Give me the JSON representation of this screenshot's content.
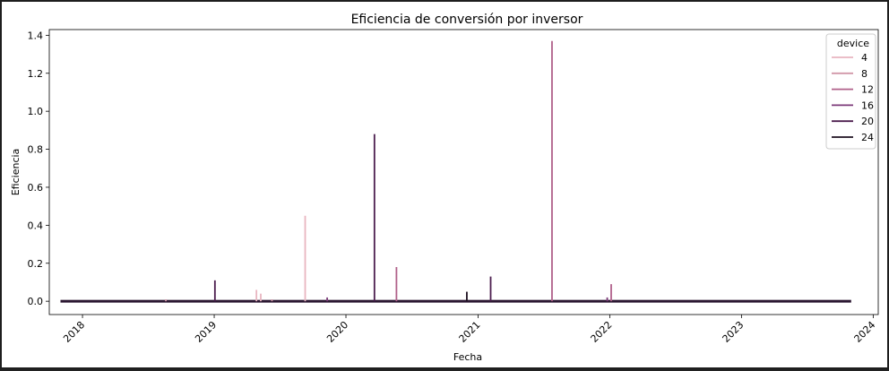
{
  "chart_data": {
    "type": "line",
    "title": "Eficiencia de conversión por inversor",
    "xlabel": "Fecha",
    "ylabel": "Eficiencia",
    "x_ticks": [
      "2018",
      "2019",
      "2020",
      "2021",
      "2022",
      "2023",
      "2024"
    ],
    "y_ticks": [
      "0.0",
      "0.2",
      "0.4",
      "0.6",
      "0.8",
      "1.0",
      "1.2",
      "1.4"
    ],
    "xlim": [
      "2017-10-01",
      "2024-01-15"
    ],
    "ylim": [
      -0.07,
      1.43
    ],
    "x_range_data": [
      "2017-11-01",
      "2023-11-01"
    ],
    "baseline": 0.0,
    "legend": {
      "title": "device",
      "placement": "upper right"
    },
    "series": [
      {
        "name": "4",
        "color": "#e8b5c0",
        "spikes": [
          [
            "2019-04-28",
            0.06
          ],
          [
            "2019-05-10",
            0.04
          ],
          [
            "2019-09-10",
            0.45
          ]
        ]
      },
      {
        "name": "8",
        "color": "#d197a8",
        "spikes": [
          [
            "2018-08-20",
            0.01
          ],
          [
            "2019-06-10",
            0.01
          ]
        ]
      },
      {
        "name": "12",
        "color": "#b0608a",
        "spikes": [
          [
            "2020-05-20",
            0.18
          ],
          [
            "2021-07-25",
            1.37
          ],
          [
            "2022-01-05",
            0.09
          ]
        ]
      },
      {
        "name": "16",
        "color": "#7c3a79",
        "spikes": [
          [
            "2019-11-10",
            0.02
          ],
          [
            "2021-12-25",
            0.02
          ]
        ]
      },
      {
        "name": "20",
        "color": "#4c1e4f",
        "spikes": [
          [
            "2019-01-03",
            0.11
          ],
          [
            "2020-03-20",
            0.88
          ],
          [
            "2021-02-05",
            0.13
          ]
        ]
      },
      {
        "name": "24",
        "color": "#1d0f1f",
        "spikes": [
          [
            "2020-12-01",
            0.05
          ]
        ]
      }
    ]
  }
}
